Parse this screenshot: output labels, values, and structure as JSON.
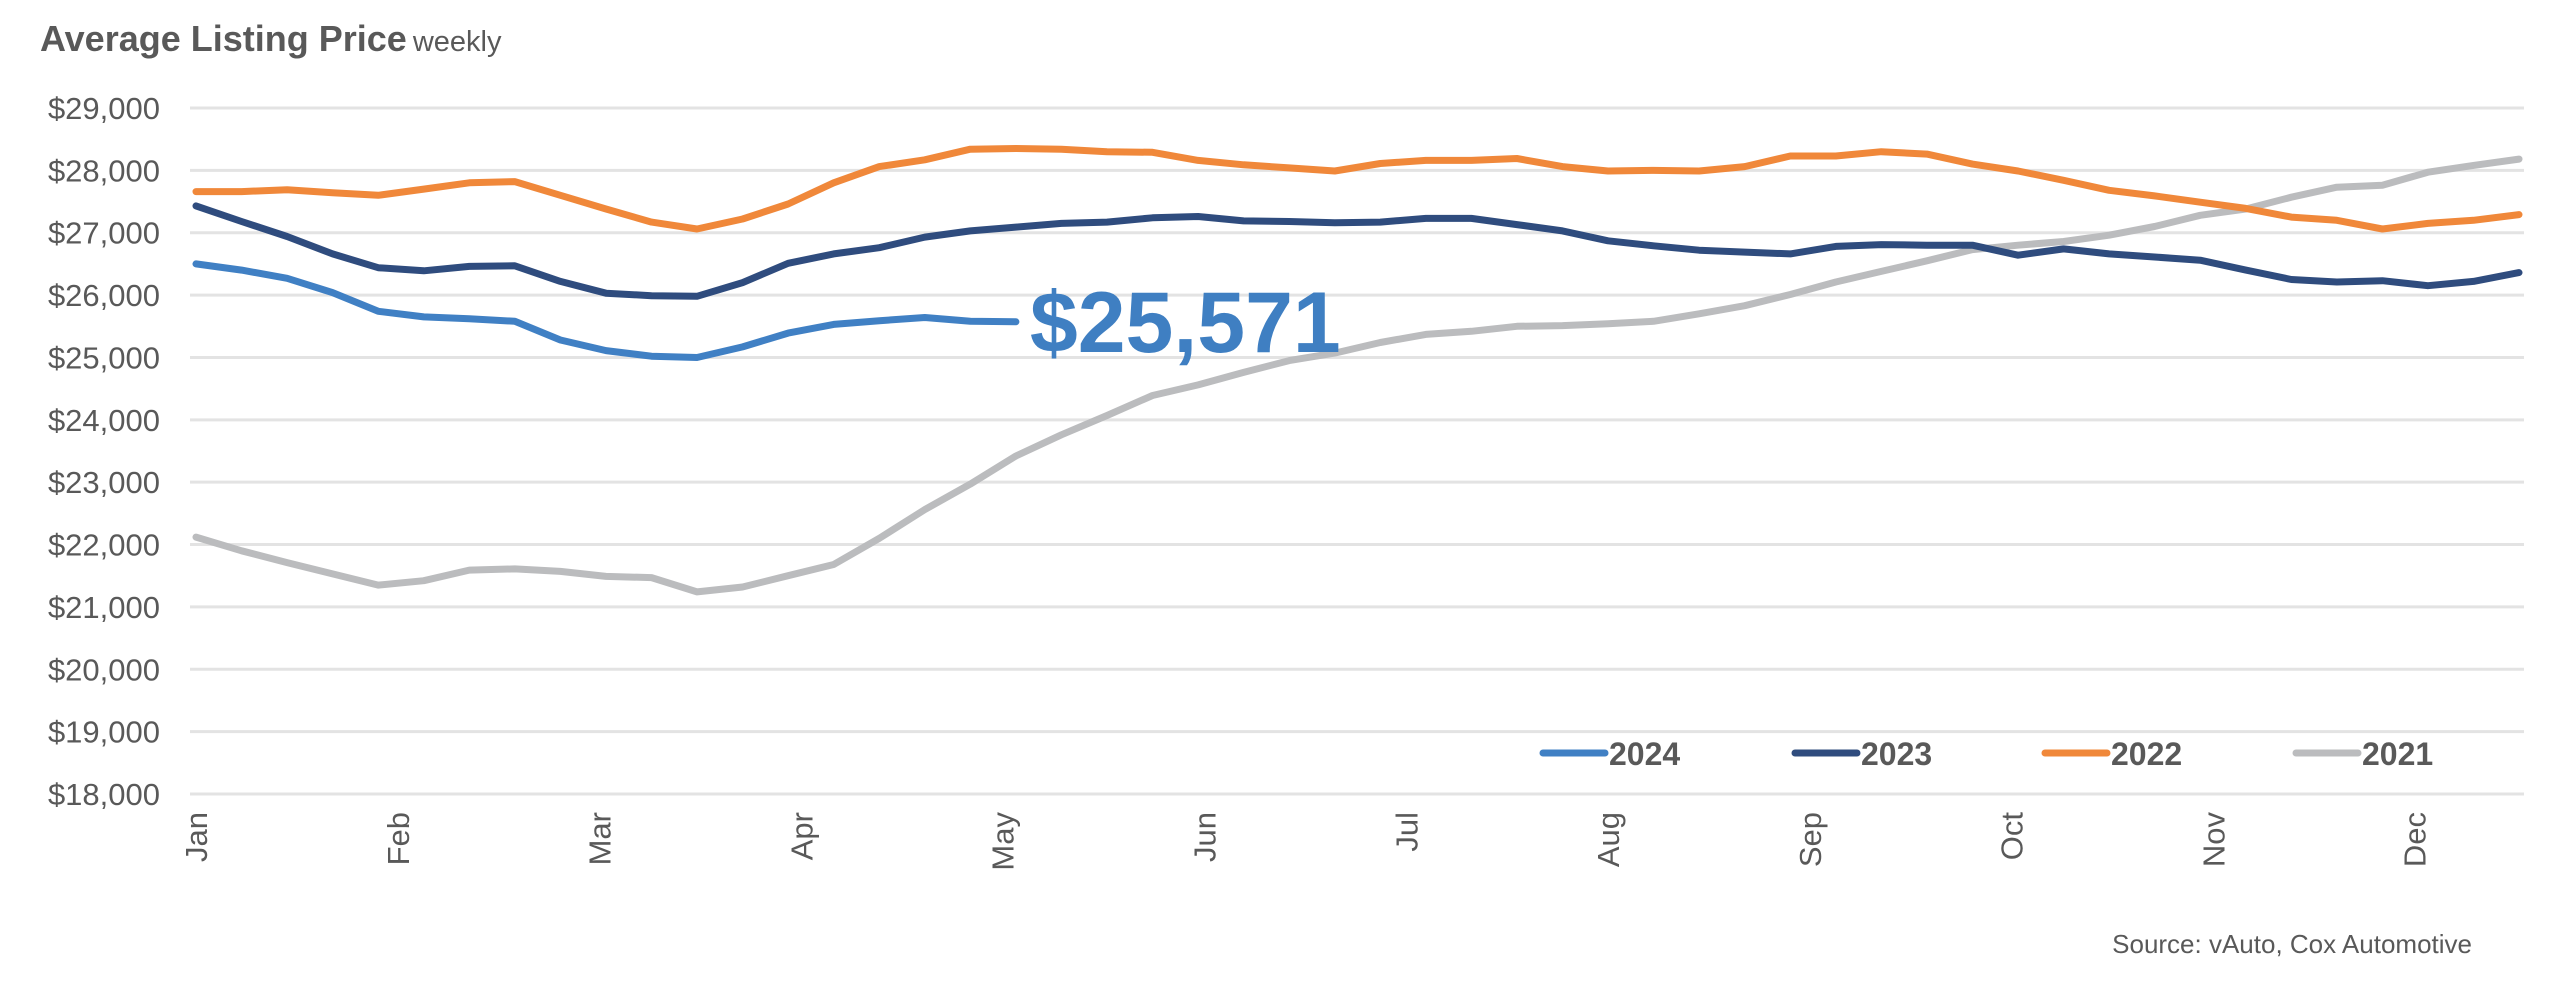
{
  "chart_data": {
    "type": "line",
    "title": "Average Listing Price",
    "subtitle": "weekly",
    "xlabel": "",
    "ylabel": "",
    "ylim": [
      18000,
      29000
    ],
    "ytick_values": [
      29000,
      28000,
      27000,
      26000,
      25000,
      24000,
      23000,
      22000,
      21000,
      20000,
      19000,
      18000
    ],
    "ytick_labels": [
      "$29,000",
      "$28,000",
      "$27,000",
      "$26,000",
      "$25,000",
      "$24,000",
      "$23,000",
      "$22,000",
      "$21,000",
      "$20,000",
      "$19,000",
      "$18,000"
    ],
    "x_unit": "week of year",
    "x_count": 52,
    "month_ticks": [
      {
        "label": "Jan",
        "week": 0
      },
      {
        "label": "Feb",
        "week": 4.43
      },
      {
        "label": "Mar",
        "week": 8.86
      },
      {
        "label": "Apr",
        "week": 13.29
      },
      {
        "label": "May",
        "week": 17.71
      },
      {
        "label": "Jun",
        "week": 22.14
      },
      {
        "label": "Jul",
        "week": 26.57
      },
      {
        "label": "Aug",
        "week": 31.0
      },
      {
        "label": "Sep",
        "week": 35.43
      },
      {
        "label": "Oct",
        "week": 39.86
      },
      {
        "label": "Nov",
        "week": 44.29
      },
      {
        "label": "Dec",
        "week": 48.71
      }
    ],
    "grid": true,
    "legend_position": "bottom-right",
    "series": [
      {
        "name": "2024",
        "color": "#4080c4",
        "values": [
          26500,
          26400,
          26270,
          26040,
          25740,
          25650,
          25620,
          25580,
          25280,
          25110,
          25020,
          25000,
          25170,
          25390,
          25530,
          25590,
          25640,
          25580,
          25571
        ]
      },
      {
        "name": "2023",
        "color": "#2f4c7e",
        "values": [
          27430,
          27180,
          26940,
          26660,
          26440,
          26390,
          26460,
          26470,
          26220,
          26030,
          25990,
          25980,
          26200,
          26510,
          26660,
          26760,
          26930,
          27030,
          27090,
          27150,
          27170,
          27240,
          27260,
          27190,
          27180,
          27160,
          27170,
          27230,
          27230,
          27130,
          27030,
          26870,
          26790,
          26720,
          26690,
          26660,
          26780,
          26810,
          26800,
          26800,
          26640,
          26740,
          26660,
          26610,
          26560,
          26400,
          26250,
          26210,
          26230,
          26150,
          26220,
          26360
        ]
      },
      {
        "name": "2022",
        "color": "#f0883a",
        "values": [
          27660,
          27660,
          27690,
          27640,
          27600,
          27700,
          27800,
          27820,
          27600,
          27380,
          27170,
          27060,
          27220,
          27460,
          27800,
          28060,
          28170,
          28340,
          28350,
          28340,
          28300,
          28290,
          28160,
          28090,
          28040,
          27990,
          28110,
          28160,
          28160,
          28190,
          28060,
          27990,
          28000,
          27990,
          28060,
          28230,
          28230,
          28300,
          28260,
          28100,
          27990,
          27840,
          27680,
          27590,
          27490,
          27390,
          27250,
          27200,
          27060,
          27150,
          27200,
          27290
        ]
      },
      {
        "name": "2021",
        "color": "#bbbcbe",
        "values": [
          22120,
          21900,
          21710,
          21530,
          21350,
          21420,
          21590,
          21610,
          21570,
          21490,
          21470,
          21240,
          21320,
          21500,
          21680,
          22100,
          22560,
          22970,
          23420,
          23760,
          24070,
          24390,
          24560,
          24760,
          24950,
          25070,
          25240,
          25370,
          25420,
          25500,
          25510,
          25540,
          25580,
          25700,
          25830,
          26010,
          26210,
          26380,
          26550,
          26730,
          26800,
          26860,
          26960,
          27100,
          27280,
          27380,
          27570,
          27730,
          27760,
          27970,
          28080,
          28180
        ]
      }
    ],
    "annotations": [
      {
        "text": "$25,571",
        "series": "2024",
        "week": 18,
        "value": 25571
      }
    ],
    "legend": [
      "2024",
      "2023",
      "2022",
      "2021"
    ]
  },
  "header": {
    "title": "Average Listing Price",
    "subtitle": "weekly"
  },
  "footer": {
    "source": "Source: vAuto, Cox Automotive"
  },
  "colors": {
    "text": "#595959",
    "grid": "#e3e3e3",
    "annotation": "#3f7fc2"
  }
}
